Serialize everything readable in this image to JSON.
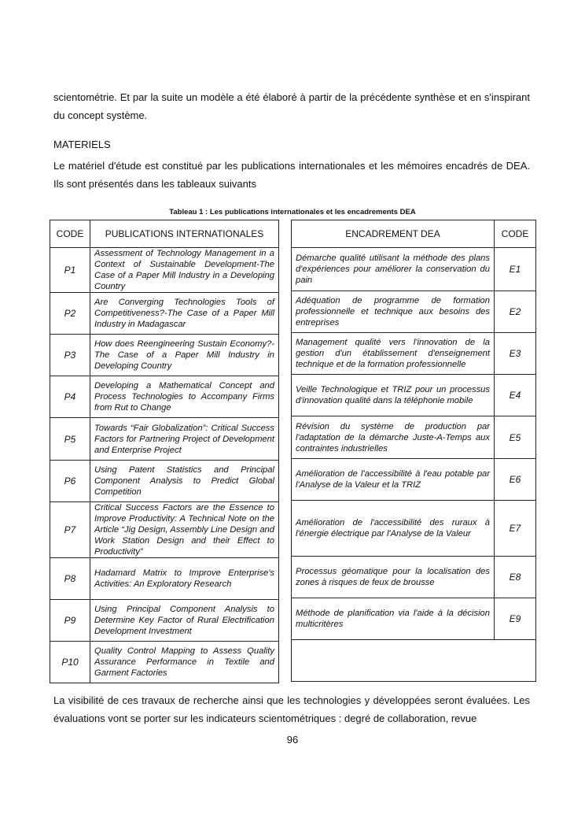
{
  "intro_text": "scientométrie. Et par la suite un modèle a été élaboré à partir de la précédente synthèse et en s'inspirant du concept système.",
  "section_heading": "MATERIELS",
  "materials_text": "Le matériel d'étude est constitué par les publications internationales et les mémoires encadrés de DEA. Ils sont présentés dans les tableaux suivants",
  "table_caption": "Tableau 1 : Les publications internationales et les encadrements DEA",
  "left_table": {
    "headers": [
      "CODE",
      "PUBLICATIONS INTERNATIONALES"
    ],
    "rows": [
      {
        "code": "P1",
        "title": "Assessment of Technology Management in a Context of Sustainable Development-The Case of a Paper Mill Industry in a Developing Country"
      },
      {
        "code": "P2",
        "title": "Are Converging Technologies Tools of Competitiveness?-The Case of a Paper Mill Industry in Madagascar"
      },
      {
        "code": "P3",
        "title": "How does Reengineering Sustain Economy?-The Case of a Paper Mill Industry in Developing Country"
      },
      {
        "code": "P4",
        "title": "Developing a Mathematical Concept and Process Technologies to Accompany Firms from Rut to Change"
      },
      {
        "code": "P5",
        "title": "Towards “Fair Globalization”: Critical Success Factors for Partnering Project of Development and Enterprise Project"
      },
      {
        "code": "P6",
        "title": "Using Patent Statistics and Principal Component Analysis to Predict Global Competition"
      },
      {
        "code": "P7",
        "title": "Critical Success Factors are the Essence to Improve Productivity: A Technical Note on the Article “Jig Design, Assembly Line Design and Work Station Design and their Effect to Productivity”"
      },
      {
        "code": "P8",
        "title": "Hadamard Matrix to Improve Enterprise's Activities: An Exploratory Research"
      },
      {
        "code": "P9",
        "title": "Using Principal Component Analysis to Determine Key Factor of Rural Electrification Development Investment"
      },
      {
        "code": "P10",
        "title": "Quality Control Mapping to Assess Quality Assurance Performance in Textile and Garment Factories"
      }
    ]
  },
  "right_table": {
    "headers": [
      "ENCADREMENT DEA",
      "CODE"
    ],
    "rows": [
      {
        "code": "E1",
        "title": "Démarche qualité utilisant la méthode des plans d'expériences pour améliorer la conservation du pain"
      },
      {
        "code": "E2",
        "title": "Adéquation de programme de formation professionnelle et technique aux besoins des entreprises"
      },
      {
        "code": "E3",
        "title": "Management qualité vers l'innovation de la gestion d'un établissement d'enseignement technique et de la formation professionnelle"
      },
      {
        "code": "E4",
        "title": "Veille Technologique et TRIZ pour un processus d'innovation qualité dans la téléphonie mobile"
      },
      {
        "code": "E5",
        "title": "Révision du système de production par l'adaptation de la démarche Juste-A-Temps aux contraintes industrielles"
      },
      {
        "code": "E6",
        "title": "Amélioration de l'accessibilité à l'eau potable par l'Analyse de la Valeur et la TRIZ"
      },
      {
        "code": "E7",
        "title": "Amélioration de l'accessibilité des ruraux à l'énergie électrique par l'Analyse de la Valeur"
      },
      {
        "code": "E8",
        "title": "Processus géomatique pour la localisation des zones à risques de feux de brousse"
      },
      {
        "code": "E9",
        "title": "Méthode de planification via l'aide à la décision multicritères"
      }
    ]
  },
  "closing_text": "La visibilité de ces travaux de recherche ainsi que les technologies y développées seront évaluées. Les évaluations vont se porter sur les indicateurs scientométriques : degré de collaboration, revue",
  "page_number": "96"
}
